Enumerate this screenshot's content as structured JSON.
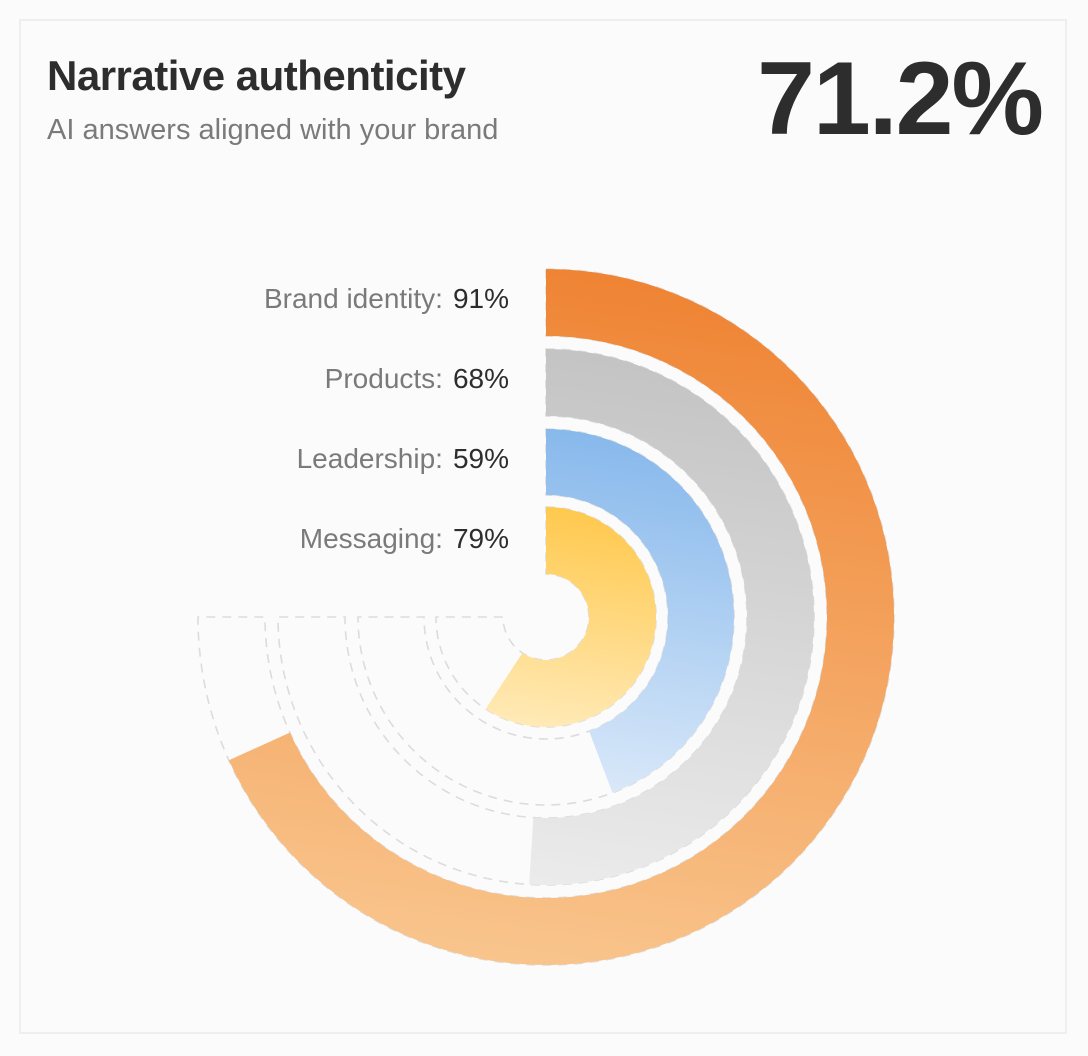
{
  "header": {
    "title": "Narrative authenticity",
    "subtitle": "AI answers aligned with your brand",
    "overall_value": "71.2%"
  },
  "legend": [
    {
      "label": "Brand identity:",
      "value": "91%"
    },
    {
      "label": "Products:",
      "value": "68%"
    },
    {
      "label": "Leadership:",
      "value": "59%"
    },
    {
      "label": "Messaging:",
      "value": "79%"
    }
  ],
  "colors": {
    "brand_identity": [
      "#ef8434",
      "#f9c68e"
    ],
    "products": [
      "#c4c4c4",
      "#ececec"
    ],
    "leadership": [
      "#88b9ec",
      "#e0ecfa"
    ],
    "messaging": [
      "#ffc94f",
      "#ffeab8"
    ],
    "track_dash": "#dcdcdc",
    "background": "#fcfbfb"
  },
  "chart_data": {
    "type": "radial-bar",
    "title": "Narrative authenticity",
    "subtitle": "AI answers aligned with your brand",
    "overall": 71.2,
    "unit": "%",
    "max_value": 100,
    "sweep_degrees_for_max": 270,
    "categories": [
      "Brand identity",
      "Products",
      "Leadership",
      "Messaging"
    ],
    "values": [
      91,
      68,
      59,
      79
    ],
    "rings": [
      {
        "name": "Brand identity",
        "value": 91,
        "outer_r": 348,
        "inner_r": 281
      },
      {
        "name": "Products",
        "value": 68,
        "outer_r": 268,
        "inner_r": 201
      },
      {
        "name": "Leadership",
        "value": 59,
        "outer_r": 188,
        "inner_r": 122
      },
      {
        "name": "Messaging",
        "value": 79,
        "outer_r": 110,
        "inner_r": 43
      }
    ],
    "legend_position": "left-of-rings-start"
  }
}
